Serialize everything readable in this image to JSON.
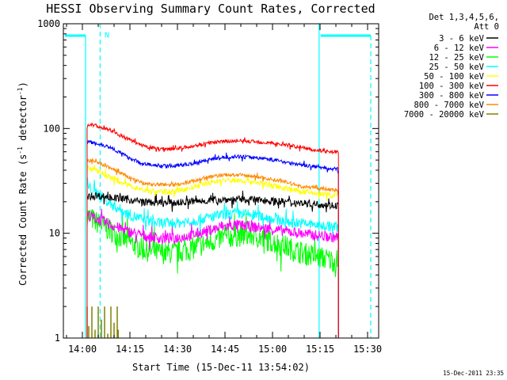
{
  "chart_data": {
    "type": "line",
    "title": "HESSI Observing Summary Count Rates, Corrected",
    "xlabel": "Start Time (15-Dec-11 13:54:02)",
    "ylabel": "Corrected Count Rate (s",
    "ylabel_sup1": "-1",
    "ylabel_mid": " detector",
    "ylabel_sup2": "-1",
    "ylabel_end": ")",
    "x_unit": "minutes after 13:54:02",
    "xlim": [
      0,
      99.5
    ],
    "ylim": [
      1,
      1000
    ],
    "y_scale": "log",
    "x_ticks": [
      {
        "label": "14:00",
        "value": 6
      },
      {
        "label": "14:15",
        "value": 21
      },
      {
        "label": "14:30",
        "value": 36
      },
      {
        "label": "14:45",
        "value": 51
      },
      {
        "label": "15:00",
        "value": 66
      },
      {
        "label": "15:15",
        "value": 81
      },
      {
        "label": "15:30",
        "value": 96
      }
    ],
    "y_ticks": [
      {
        "label": "1",
        "value": 1
      },
      {
        "label": "10",
        "value": 10
      },
      {
        "label": "100",
        "value": 100
      },
      {
        "label": "1000",
        "value": 1000
      }
    ],
    "legend": {
      "header1": "Det 1,3,4,5,6,",
      "header2": "Att 0",
      "position": "right"
    },
    "series": [
      {
        "name": "3 - 6 keV",
        "color": "#000000",
        "noise": 0.08,
        "x": [
          7.5,
          10,
          15,
          20,
          25,
          30,
          35,
          40,
          45,
          50,
          55,
          60,
          65,
          70,
          75,
          80,
          85,
          86.8
        ],
        "values": [
          22,
          23,
          22,
          21,
          20,
          19.5,
          19.5,
          20,
          20.5,
          21,
          21,
          21,
          20.5,
          20,
          19.5,
          19,
          18.5,
          18.5
        ]
      },
      {
        "name": "6 - 12 keV",
        "color": "#ff00ff",
        "noise": 0.12,
        "x": [
          7.5,
          10,
          15,
          20,
          25,
          30,
          35,
          40,
          45,
          50,
          55,
          60,
          65,
          70,
          75,
          80,
          85,
          86.8
        ],
        "values": [
          15,
          14,
          12,
          10.5,
          9.5,
          9,
          9,
          9.5,
          10.5,
          11.5,
          12,
          11.5,
          11,
          10.5,
          10,
          9.5,
          9.2,
          9.2
        ]
      },
      {
        "name": "12 - 25 keV",
        "color": "#00ff00",
        "noise": 0.25,
        "x": [
          7.5,
          10,
          15,
          20,
          25,
          30,
          35,
          40,
          45,
          50,
          55,
          60,
          65,
          70,
          75,
          80,
          85,
          86.8
        ],
        "values": [
          15,
          13,
          10.5,
          8.5,
          7,
          6.5,
          6.5,
          7,
          8,
          9,
          9.5,
          9.5,
          8.5,
          7.5,
          6.5,
          6,
          5.5,
          5.5
        ]
      },
      {
        "name": "25 - 50 keV",
        "color": "#00ffff",
        "noise": 0.12,
        "x": [
          7.5,
          10,
          15,
          20,
          25,
          30,
          35,
          40,
          45,
          50,
          55,
          60,
          65,
          70,
          75,
          80,
          85,
          86.8
        ],
        "values": [
          28,
          25,
          19,
          15.5,
          13.5,
          12.5,
          12.5,
          13,
          14,
          15,
          15.5,
          15,
          14,
          13,
          12.5,
          12,
          11.5,
          11.5
        ]
      },
      {
        "name": "50 - 100 keV",
        "color": "#ffff00",
        "noise": 0.06,
        "x": [
          7.5,
          10,
          15,
          20,
          25,
          30,
          35,
          40,
          45,
          50,
          55,
          60,
          65,
          70,
          75,
          80,
          85,
          86.8
        ],
        "values": [
          42,
          40,
          34,
          29,
          26,
          25,
          25,
          27,
          30,
          32,
          32,
          31,
          29,
          27,
          25,
          24,
          23,
          23
        ]
      },
      {
        "name": "100 - 300 keV",
        "color": "#ff0000",
        "noise": 0.04,
        "x": [
          7.5,
          10,
          15,
          20,
          25,
          30,
          35,
          40,
          45,
          50,
          55,
          60,
          65,
          70,
          75,
          80,
          85,
          86.8
        ],
        "values": [
          110,
          107,
          96,
          80,
          68,
          64,
          64,
          67,
          72,
          75,
          76,
          75,
          73,
          70,
          66,
          62,
          60,
          60
        ]
      },
      {
        "name": "300 - 800 keV",
        "color": "#0000ff",
        "noise": 0.04,
        "x": [
          7.5,
          10,
          15,
          20,
          25,
          30,
          35,
          40,
          45,
          50,
          55,
          60,
          65,
          70,
          75,
          80,
          85,
          86.8
        ],
        "values": [
          75,
          73,
          66,
          54,
          46,
          44,
          44,
          46,
          50,
          53,
          54,
          53,
          51,
          48,
          45,
          43,
          41,
          41
        ]
      },
      {
        "name": "800 - 7000 keV",
        "color": "#ff8800",
        "noise": 0.04,
        "x": [
          7.5,
          10,
          15,
          20,
          25,
          30,
          35,
          40,
          45,
          50,
          55,
          60,
          65,
          70,
          75,
          80,
          85,
          86.8
        ],
        "values": [
          50,
          48,
          42,
          35,
          30,
          29,
          29,
          31,
          34,
          36,
          36,
          35,
          33,
          31,
          28,
          27,
          26,
          26
        ]
      },
      {
        "name": "7000 - 20000 keV",
        "color": "#808000",
        "noise": 0,
        "x": [
          7.5,
          8,
          9,
          10,
          11,
          12,
          13,
          14,
          15,
          16,
          17,
          17.3
        ],
        "values": [
          2,
          1.3,
          2,
          1.2,
          2,
          1.5,
          2,
          1.1,
          2,
          1.4,
          2,
          1.2
        ]
      }
    ],
    "background_segments": [
      {
        "color": "#00ffff",
        "style": "solid",
        "points": [
          [
            0.5,
            770
          ],
          [
            7,
            770
          ]
        ]
      },
      {
        "color": "#00ffff",
        "style": "solid",
        "points": [
          [
            7,
            770
          ],
          [
            7,
            1
          ]
        ]
      },
      {
        "color": "#00ffff",
        "style": "dashed",
        "points": [
          [
            11.6,
            1000
          ],
          [
            11.6,
            1
          ]
        ]
      },
      {
        "color": "#00ffff",
        "style": "solid",
        "points": [
          [
            80.7,
            1000
          ],
          [
            80.7,
            1
          ]
        ]
      },
      {
        "color": "#00ffff",
        "style": "solid",
        "points": [
          [
            81.2,
            770
          ],
          [
            97,
            770
          ]
        ]
      },
      {
        "color": "#00ffff",
        "style": "dashed",
        "points": [
          [
            97,
            770
          ],
          [
            97,
            1
          ]
        ]
      }
    ],
    "annotations": [
      {
        "text": "N",
        "x": 13,
        "y": 790,
        "color": "#00ffff"
      }
    ],
    "gridlines": false
  },
  "footer_date": "15-Dec-2011 23:35",
  "colors": {
    "background": "#ffffff",
    "axis": "#000000"
  }
}
